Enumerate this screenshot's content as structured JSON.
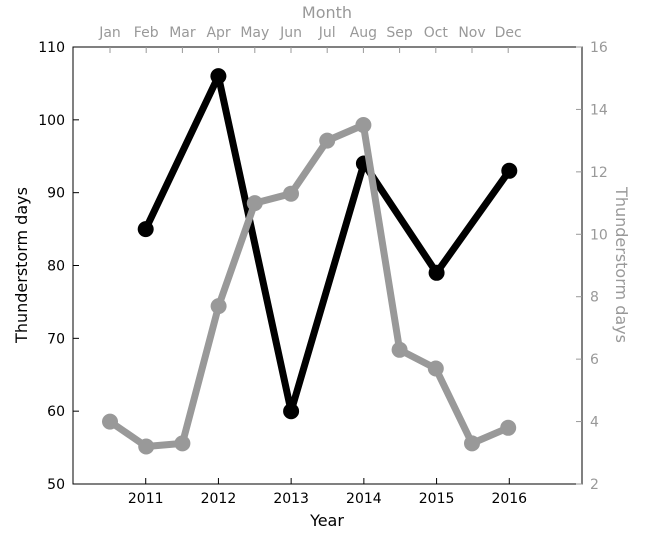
{
  "chart_data": {
    "type": "line",
    "title": "",
    "colors": {
      "yearly_series": "#000000",
      "monthly_series": "#999999",
      "axes": "#000000",
      "secondary_axes": "#999999"
    },
    "bottom_axis": {
      "label": "Year",
      "ticks": [
        2011,
        2012,
        2013,
        2014,
        2015,
        2016
      ],
      "range": [
        2010,
        2017
      ]
    },
    "top_axis": {
      "label": "Month",
      "ticks": [
        "Jan",
        "Feb",
        "Mar",
        "Apr",
        "May",
        "Jun",
        "Jul",
        "Aug",
        "Sep",
        "Oct",
        "Nov",
        "Dec"
      ]
    },
    "left_axis": {
      "label": "Thunderstorm days",
      "ticks": [
        50,
        60,
        70,
        80,
        90,
        100,
        110
      ],
      "range": [
        50,
        110
      ]
    },
    "right_axis": {
      "label": "Thunderstorm days",
      "ticks": [
        2,
        4,
        6,
        8,
        10,
        12,
        14,
        16
      ],
      "range": [
        2,
        16
      ]
    },
    "series": [
      {
        "axis": "bottom-left",
        "x": [
          2011,
          2012,
          2013,
          2014,
          2015,
          2016
        ],
        "values": [
          85,
          106,
          60,
          94,
          79,
          93
        ]
      },
      {
        "axis": "top-right",
        "x": [
          "Jan",
          "Feb",
          "Mar",
          "Apr",
          "May",
          "Jun",
          "Jul",
          "Aug",
          "Sep",
          "Oct",
          "Nov",
          "Dec"
        ],
        "values": [
          4.0,
          3.2,
          3.3,
          7.7,
          11.0,
          11.3,
          13.0,
          13.5,
          6.3,
          5.7,
          3.3,
          3.8
        ]
      }
    ]
  }
}
